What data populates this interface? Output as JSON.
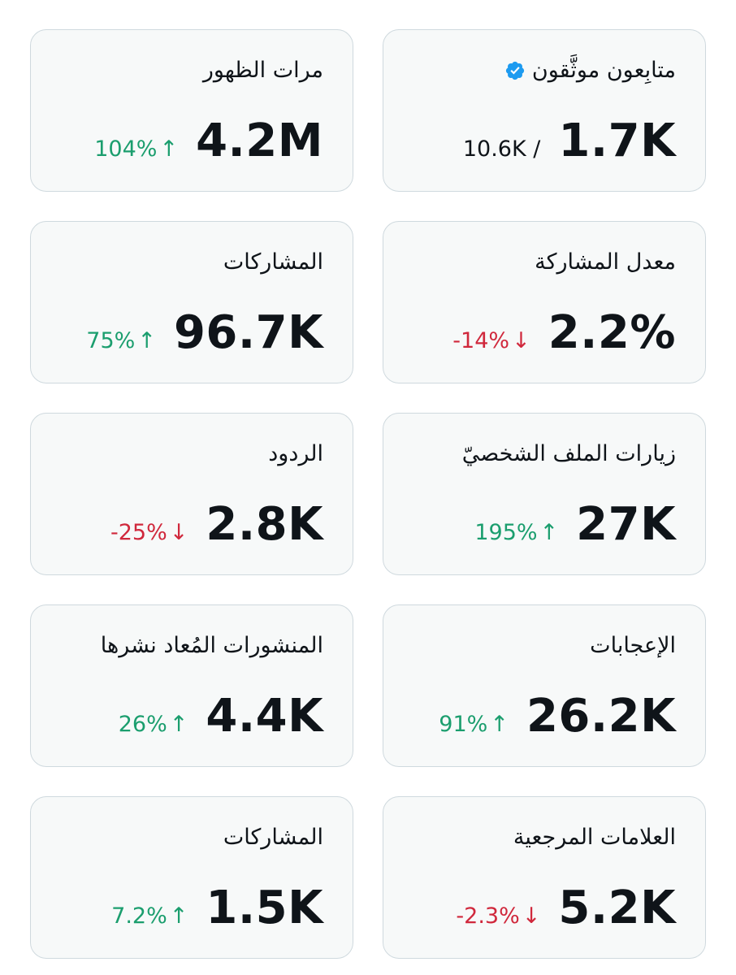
{
  "cards": [
    {
      "title": "متابِعون موثَّقون",
      "value": "1.7K",
      "total": "10.6K",
      "separator": "/",
      "has_verified_icon": true,
      "icon_color": "#1d9bf0"
    },
    {
      "title": "مرات الظهور",
      "value": "4.2M",
      "change": "104%",
      "direction": "up",
      "arrow": "↑"
    },
    {
      "title": "معدل المشاركة",
      "value": "2.2%",
      "change": "-14%",
      "direction": "down",
      "arrow": "↓"
    },
    {
      "title": "المشاركات",
      "value": "96.7K",
      "change": "75%",
      "direction": "up",
      "arrow": "↑"
    },
    {
      "title": "زيارات الملف الشخصيّ",
      "value": "27K",
      "change": "195%",
      "direction": "up",
      "arrow": "↑"
    },
    {
      "title": "الردود",
      "value": "2.8K",
      "change": "-25%",
      "direction": "down",
      "arrow": "↓"
    },
    {
      "title": "الإعجابات",
      "value": "26.2K",
      "change": "91%",
      "direction": "up",
      "arrow": "↑"
    },
    {
      "title": "المنشورات المُعاد نشرها",
      "value": "4.4K",
      "change": "26%",
      "direction": "up",
      "arrow": "↑"
    },
    {
      "title": "العلامات المرجعية",
      "value": "5.2K",
      "change": "-2.3%",
      "direction": "down",
      "arrow": "↓"
    },
    {
      "title": "المشاركات",
      "value": "1.5K",
      "change": "7.2%",
      "direction": "up",
      "arrow": "↑"
    }
  ],
  "colors": {
    "up": "#1b9e6e",
    "down": "#d0283c",
    "card_bg": "#f7f9f9",
    "card_border": "#cfd9de",
    "text": "#0f1419"
  }
}
